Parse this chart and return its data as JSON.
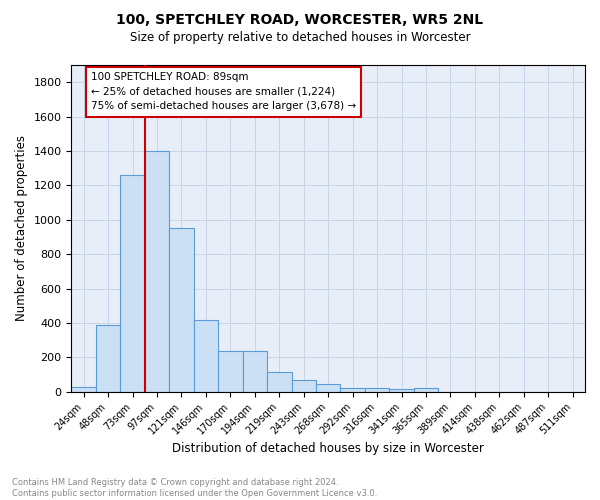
{
  "title1": "100, SPETCHLEY ROAD, WORCESTER, WR5 2NL",
  "title2": "Size of property relative to detached houses in Worcester",
  "xlabel": "Distribution of detached houses by size in Worcester",
  "ylabel": "Number of detached properties",
  "bar_labels": [
    "24sqm",
    "48sqm",
    "73sqm",
    "97sqm",
    "121sqm",
    "146sqm",
    "170sqm",
    "194sqm",
    "219sqm",
    "243sqm",
    "268sqm",
    "292sqm",
    "316sqm",
    "341sqm",
    "365sqm",
    "389sqm",
    "414sqm",
    "438sqm",
    "462sqm",
    "487sqm",
    "511sqm"
  ],
  "bar_values": [
    30,
    390,
    1260,
    1400,
    950,
    415,
    235,
    235,
    115,
    70,
    45,
    20,
    20,
    15,
    20,
    0,
    0,
    0,
    0,
    0,
    0
  ],
  "bar_color": "#cce0f5",
  "bar_edge_color": "#5b9bd5",
  "vline_color": "#cc0000",
  "annotation_text": "100 SPETCHLEY ROAD: 89sqm\n← 25% of detached houses are smaller (1,224)\n75% of semi-detached houses are larger (3,678) →",
  "annotation_box_color": "#ffffff",
  "annotation_box_edge": "#cc0000",
  "ylim": [
    0,
    1900
  ],
  "yticks": [
    0,
    200,
    400,
    600,
    800,
    1000,
    1200,
    1400,
    1600,
    1800
  ],
  "footnote": "Contains HM Land Registry data © Crown copyright and database right 2024.\nContains public sector information licensed under the Open Government Licence v3.0.",
  "bg_color": "#ffffff",
  "plot_bg_color": "#e8eef8",
  "grid_color": "#c8d4e8"
}
